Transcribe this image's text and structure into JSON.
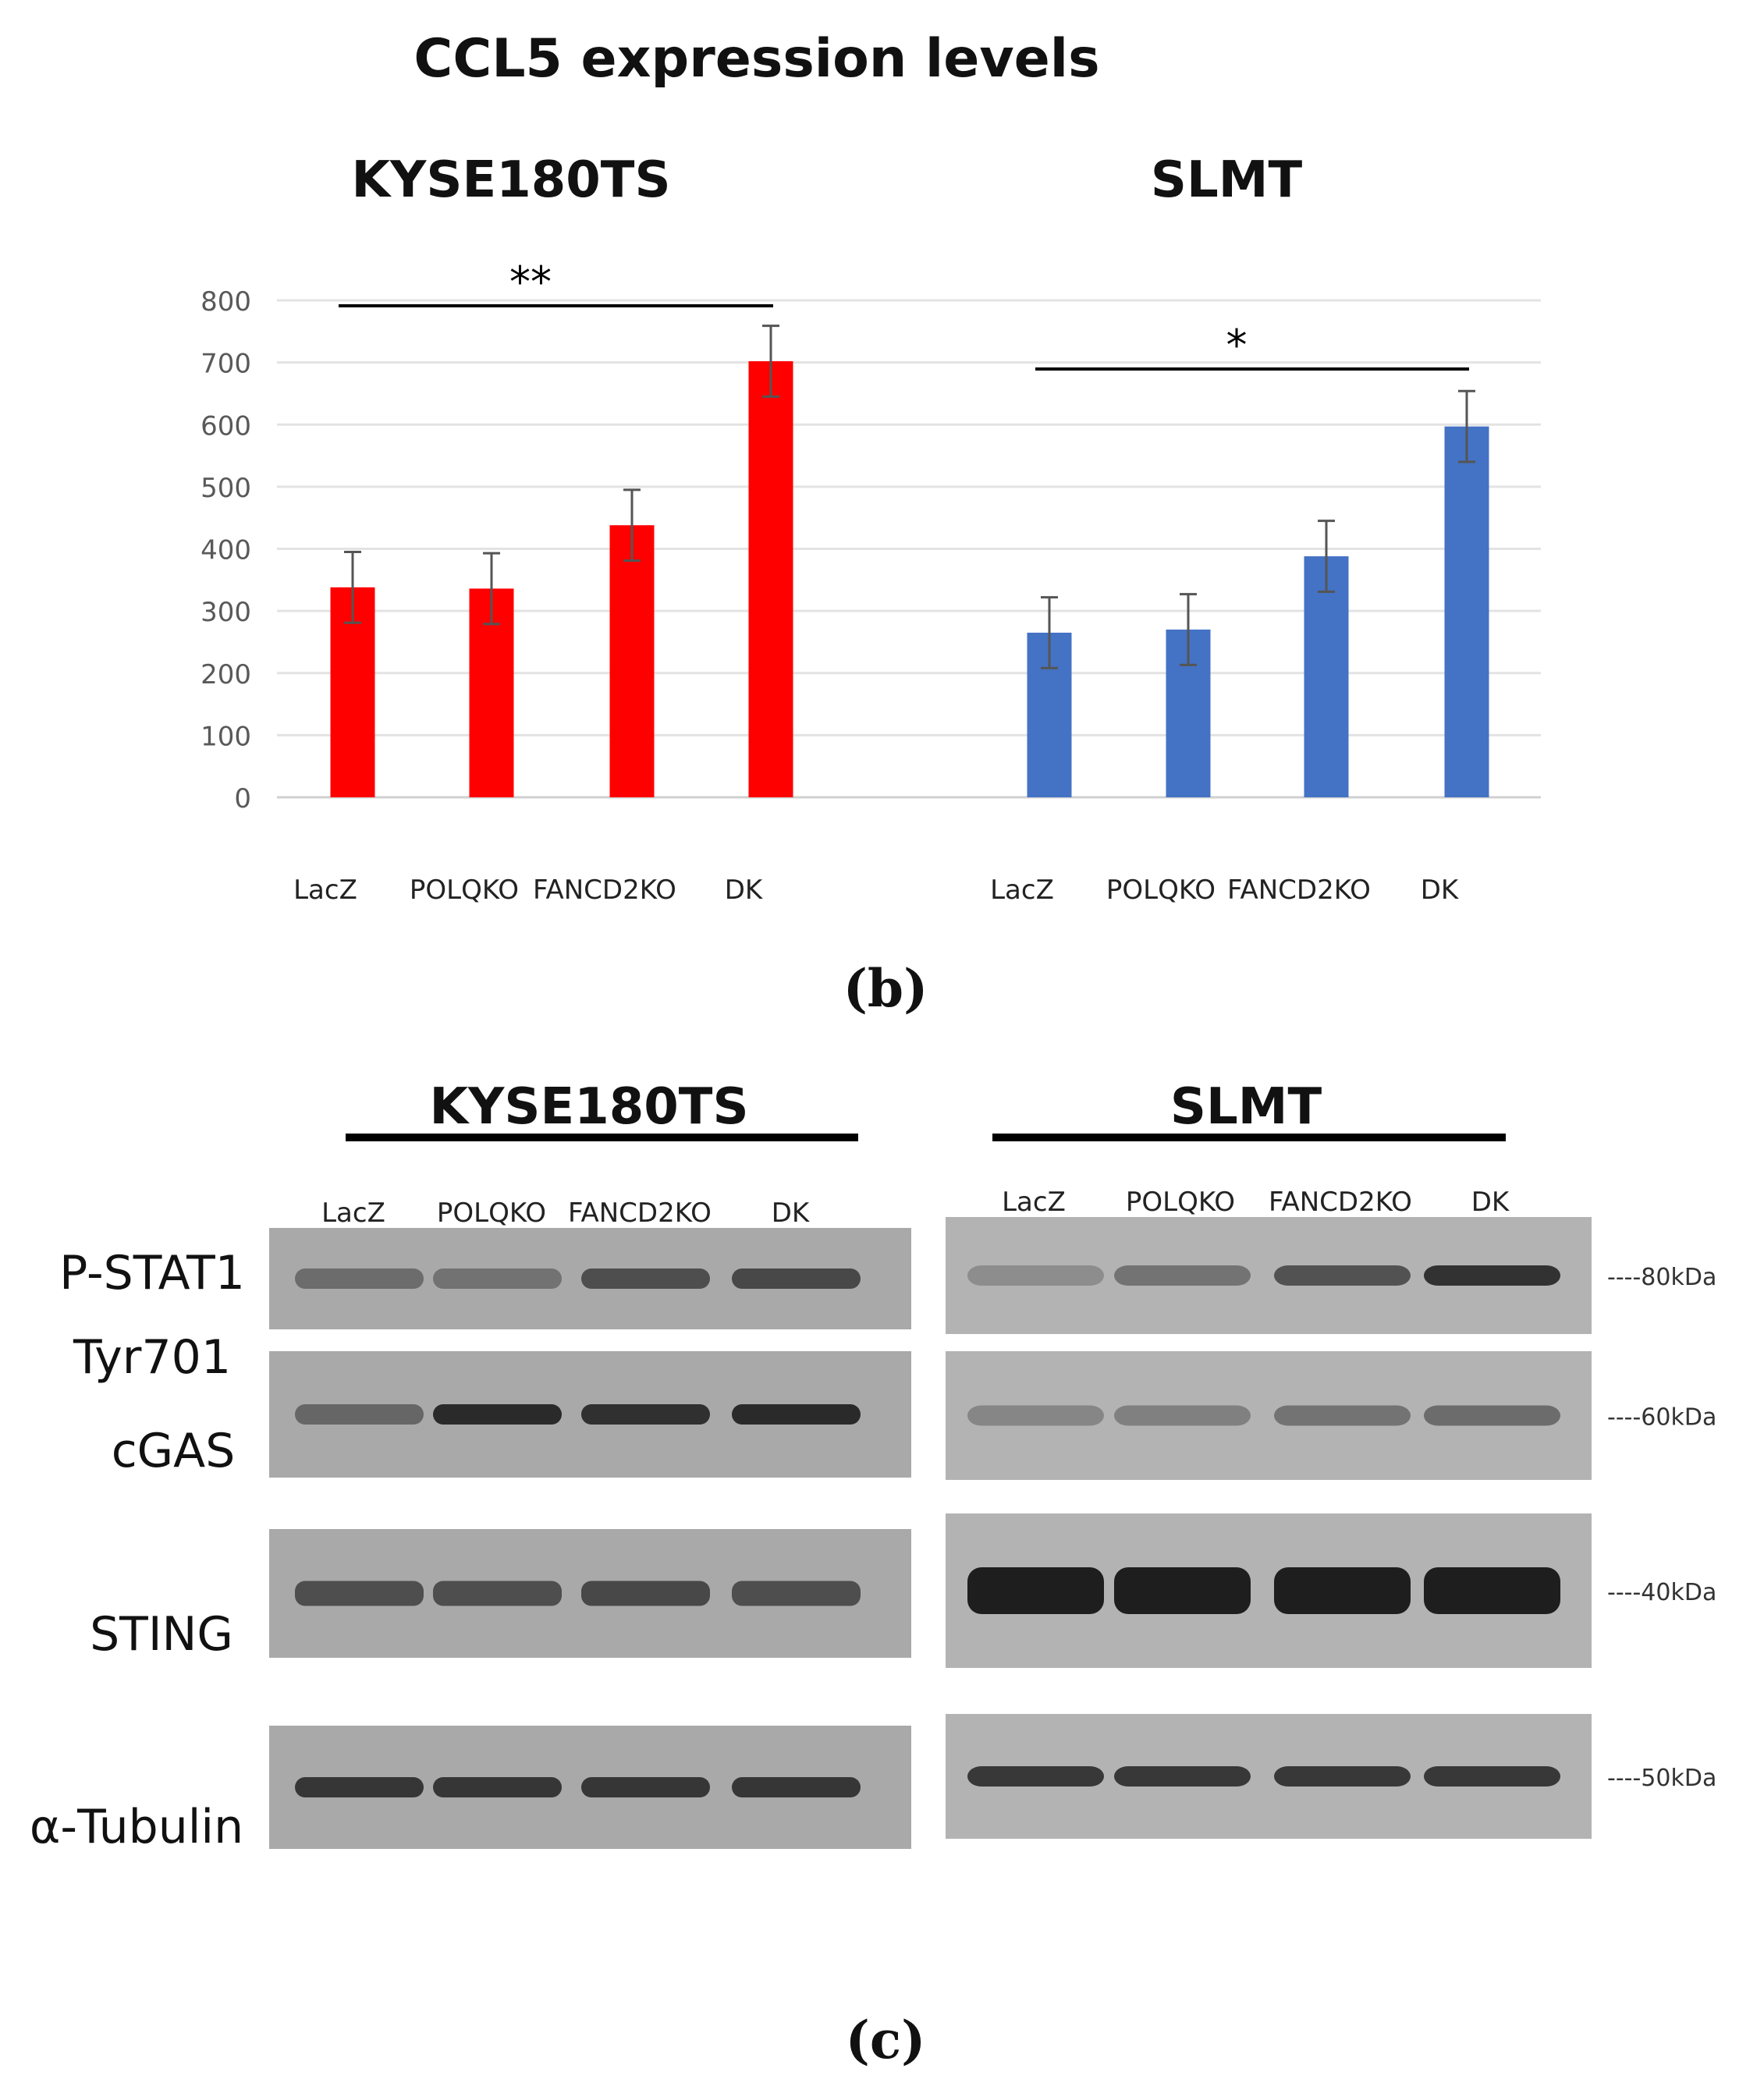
{
  "chart_data": {
    "type": "bar",
    "title": "CCL5 expression levels",
    "ylim": [
      0,
      800
    ],
    "yticks": [
      0,
      100,
      200,
      300,
      400,
      500,
      600,
      700,
      800
    ],
    "grid": true,
    "panels": [
      {
        "name": "KYSE180TS",
        "color": "#ff0000",
        "categories": [
          "LacZ",
          "POLQKO",
          "FANCD2KO",
          "DK"
        ],
        "values": [
          338,
          336,
          438,
          702
        ],
        "errors": [
          57,
          57,
          57,
          57
        ],
        "significance": "**"
      },
      {
        "name": "SLMT",
        "color": "#4472c4",
        "categories": [
          "LacZ",
          "POLQKO",
          "FANCD2KO",
          "DK"
        ],
        "values": [
          265,
          270,
          388,
          597
        ],
        "errors": [
          57,
          57,
          57,
          57
        ],
        "significance": "*"
      }
    ]
  },
  "panel_labels": {
    "b": "(b)",
    "c": "(c)"
  },
  "blot": {
    "left_title": "KYSE180TS",
    "right_title": "SLMT",
    "lanes": [
      "LacZ",
      "POLQKO",
      "FANCD2KO",
      "DK"
    ],
    "rows": [
      {
        "label": "P-STAT1",
        "label2": "Tyr701",
        "kda": "----80kDa",
        "left_intensity": [
          0.35,
          0.3,
          0.6,
          0.65
        ],
        "right_intensity": [
          0.15,
          0.35,
          0.6,
          0.85
        ]
      },
      {
        "label": "cGAS",
        "kda": "----60kDa",
        "left_intensity": [
          0.4,
          0.9,
          0.85,
          0.9
        ],
        "right_intensity": [
          0.2,
          0.25,
          0.35,
          0.4
        ]
      },
      {
        "label": "STING",
        "kda": "----40kDa",
        "left_intensity": [
          0.6,
          0.6,
          0.65,
          0.6
        ],
        "right_intensity": [
          1.0,
          1.0,
          1.0,
          1.0
        ]
      },
      {
        "label": "α-Tubulin",
        "kda": "----50kDa",
        "left_intensity": [
          0.8,
          0.8,
          0.8,
          0.8
        ],
        "right_intensity": [
          0.8,
          0.8,
          0.8,
          0.8
        ]
      }
    ]
  }
}
